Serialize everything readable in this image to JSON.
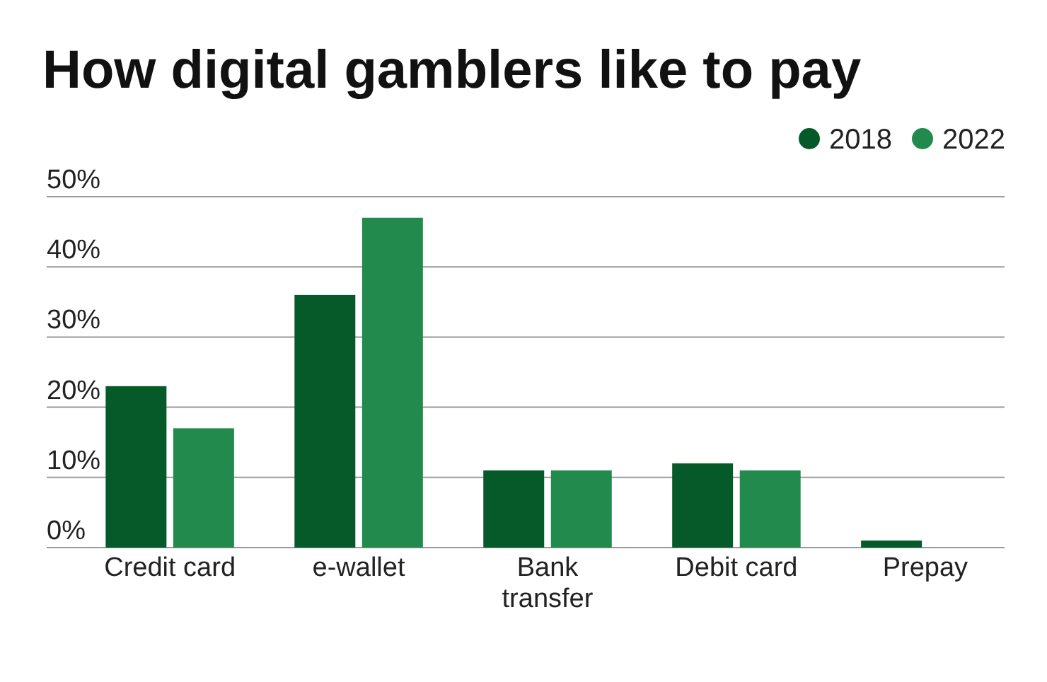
{
  "chart_data": {
    "type": "bar",
    "title": "How digital gamblers like to pay",
    "categories": [
      "Credit card",
      "e-wallet",
      "Bank transfer",
      "Debit card",
      "Prepay"
    ],
    "series": [
      {
        "name": "2018",
        "color": "#065a2a",
        "values": [
          23,
          36,
          11,
          12,
          1
        ]
      },
      {
        "name": "2022",
        "color": "#218a4c",
        "values": [
          17,
          47,
          11,
          11,
          0
        ]
      }
    ],
    "ylim": [
      0,
      50
    ],
    "yticks": [
      {
        "value": 0,
        "label": "0%"
      },
      {
        "value": 10,
        "label": "10%"
      },
      {
        "value": 20,
        "label": "20%"
      },
      {
        "value": 30,
        "label": "30%"
      },
      {
        "value": 40,
        "label": "40%"
      },
      {
        "value": 50,
        "label": "50%"
      }
    ],
    "grid": "y",
    "legend": "top right"
  }
}
